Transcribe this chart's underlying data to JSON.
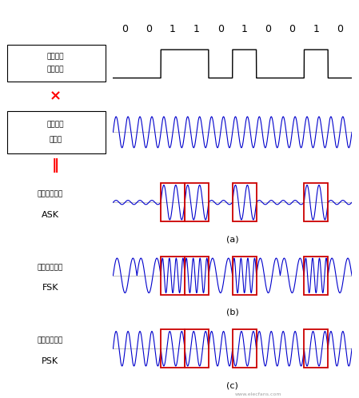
{
  "bits": [
    0,
    0,
    1,
    1,
    0,
    1,
    0,
    0,
    1,
    0
  ],
  "bit_labels": [
    "0",
    "0",
    "1",
    "1",
    "0",
    "1",
    "0",
    "0",
    "1",
    "0"
  ],
  "carrier_freq_per_bit": 2.0,
  "ask_small_amp": 0.12,
  "ask_large_amp": 1.0,
  "ask_freq_per_bit": 2.0,
  "fsk_low_per_bit": 1.5,
  "fsk_high_per_bit": 3.5,
  "psk_freq_per_bit": 2.0,
  "signal_color": "#0000cc",
  "square_color": "#000000",
  "red_box_color": "#cc0000",
  "label_color": "#000000",
  "bg_color": "#ffffff",
  "labels_row0_line1": "原始訊號",
  "labels_row0_line2": "數位訊號",
  "label_carrier_line1": "高頻載波",
  "label_carrier_line2": "電磁波",
  "label_ask_line1": "振幅位移鍵送",
  "label_ask_line2": "ASK",
  "label_fsk_line1": "頻率位移鍵送",
  "label_fsk_line2": "FSK",
  "label_psk_line1": "相位位移鍵送",
  "label_psk_line2": "PSK",
  "caption_a": "(a)",
  "caption_b": "(b)",
  "caption_c": "(c)",
  "multiply_symbol": "×",
  "equal_symbol": "‖",
  "watermark": "www.elecfans.com"
}
